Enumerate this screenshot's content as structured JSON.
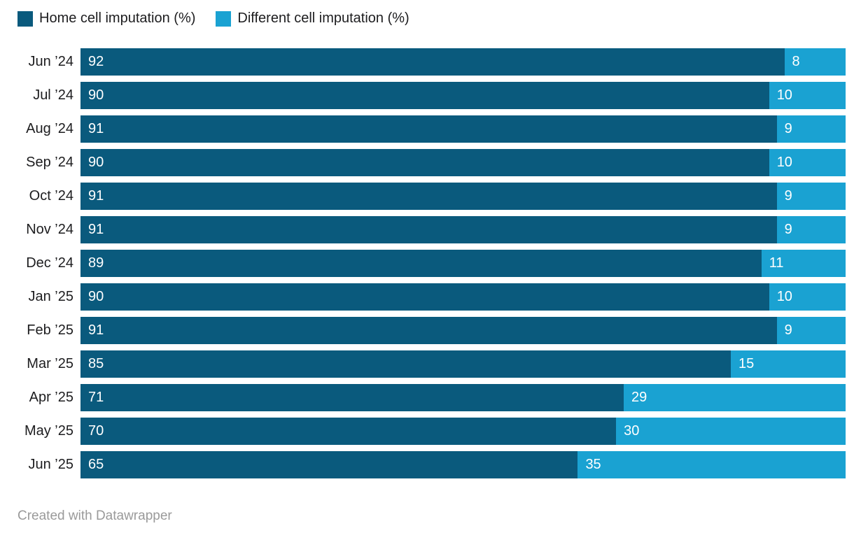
{
  "chart_data": {
    "type": "bar",
    "orientation": "horizontal",
    "stacked": true,
    "title": "",
    "xlabel": "",
    "ylabel": "",
    "xlim": [
      0,
      100
    ],
    "grid": false,
    "legend_position": "top",
    "categories": [
      "Jun ’24",
      "Jul ’24",
      "Aug ’24",
      "Sep ’24",
      "Oct ’24",
      "Nov ’24",
      "Dec ’24",
      "Jan ’25",
      "Feb ’25",
      "Mar ’25",
      "Apr ’25",
      "May ’25",
      "Jun ’25"
    ],
    "series": [
      {
        "name": "Home cell imputation (%)",
        "color": "#0a5a7d",
        "values": [
          92,
          90,
          91,
          90,
          91,
          91,
          89,
          90,
          91,
          85,
          71,
          70,
          65
        ]
      },
      {
        "name": "Different cell imputation (%)",
        "color": "#1aa2d2",
        "values": [
          8,
          10,
          9,
          10,
          9,
          9,
          11,
          10,
          9,
          15,
          29,
          30,
          35
        ]
      }
    ]
  },
  "footer": {
    "credit": "Created with Datawrapper"
  }
}
